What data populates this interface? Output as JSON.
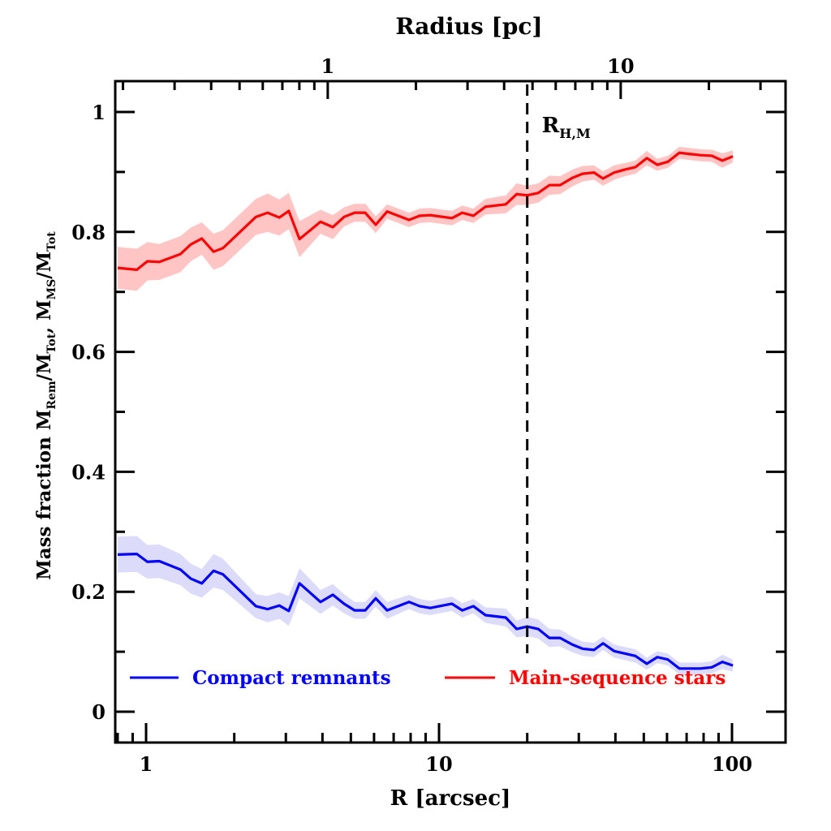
{
  "chart_data": {
    "type": "line",
    "xscale": "log",
    "xlabel": "R [arcsec]",
    "top_xlabel": "Radius [pc]",
    "ylabel": {
      "prefix": "Mass fraction",
      "num1": "M",
      "num1_sub": "Rem",
      "den1": "/M",
      "den1_sub": "Tot",
      "sep": ", ",
      "num2": "M",
      "num2_sub": "MS",
      "den2": "/M",
      "den2_sub": "Tot"
    },
    "xlim": [
      0.76,
      152
    ],
    "ylim": [
      -0.05,
      1.05
    ],
    "x_ticks": [
      {
        "value": 1,
        "label": "1"
      },
      {
        "value": 10,
        "label": "10"
      },
      {
        "value": 100,
        "label": "100"
      }
    ],
    "y_ticks": [
      {
        "value": 0,
        "label": "0"
      },
      {
        "value": 0.2,
        "label": "0.2"
      },
      {
        "value": 0.4,
        "label": "0.4"
      },
      {
        "value": 0.6,
        "label": "0.6"
      },
      {
        "value": 0.8,
        "label": "0.8"
      },
      {
        "value": 1,
        "label": "1"
      }
    ],
    "top_ticks_pc": [
      {
        "value": 1,
        "label": "1"
      },
      {
        "value": 10,
        "label": "10"
      }
    ],
    "arcsec_per_pc": 4.17,
    "vline": {
      "x": 20,
      "label": "R",
      "label_sub": "H,M"
    },
    "x": [
      0.8,
      0.93,
      1.01,
      1.11,
      1.31,
      1.42,
      1.55,
      1.7,
      1.83,
      2.37,
      2.6,
      2.85,
      3.07,
      3.34,
      3.94,
      4.34,
      4.74,
      5.15,
      5.6,
      6.08,
      6.65,
      7.9,
      8.59,
      9.33,
      11.07,
      12.0,
      13.1,
      14.4,
      16.9,
      18.4,
      20.0,
      21.8,
      23.8,
      25.9,
      28.5,
      30.9,
      33.8,
      36.3,
      39.6,
      43.1,
      46.8,
      51.2,
      55.6,
      60.4,
      66.1,
      71.8,
      78.0,
      85.3,
      92.7,
      100.7
    ],
    "series": [
      {
        "name": "Compact remnants",
        "color": "#0000ff",
        "band_color": "#dcdcfa",
        "values": [
          0.262,
          0.263,
          0.25,
          0.251,
          0.237,
          0.222,
          0.214,
          0.235,
          0.229,
          0.176,
          0.171,
          0.177,
          0.168,
          0.214,
          0.183,
          0.195,
          0.18,
          0.169,
          0.169,
          0.189,
          0.169,
          0.183,
          0.176,
          0.173,
          0.18,
          0.169,
          0.176,
          0.161,
          0.157,
          0.138,
          0.142,
          0.138,
          0.123,
          0.123,
          0.112,
          0.105,
          0.103,
          0.114,
          0.101,
          0.097,
          0.093,
          0.08,
          0.091,
          0.087,
          0.072,
          0.072,
          0.072,
          0.074,
          0.083,
          0.077
        ],
        "err": [
          0.03,
          0.03,
          0.028,
          0.028,
          0.026,
          0.025,
          0.024,
          0.028,
          0.026,
          0.02,
          0.022,
          0.022,
          0.025,
          0.025,
          0.02,
          0.018,
          0.016,
          0.014,
          0.014,
          0.014,
          0.014,
          0.012,
          0.012,
          0.012,
          0.012,
          0.012,
          0.012,
          0.013,
          0.015,
          0.014,
          0.016,
          0.016,
          0.015,
          0.014,
          0.013,
          0.012,
          0.012,
          0.011,
          0.011,
          0.011,
          0.011,
          0.01,
          0.01,
          0.01,
          0.01,
          0.01,
          0.01,
          0.01,
          0.012,
          0.01
        ]
      },
      {
        "name": "Main-sequence stars",
        "color": "#ff0000",
        "band_color": "#ffc4c4",
        "values": [
          0.74,
          0.737,
          0.751,
          0.75,
          0.763,
          0.779,
          0.789,
          0.767,
          0.773,
          0.825,
          0.832,
          0.824,
          0.835,
          0.788,
          0.817,
          0.808,
          0.825,
          0.832,
          0.832,
          0.812,
          0.834,
          0.82,
          0.827,
          0.828,
          0.823,
          0.832,
          0.827,
          0.842,
          0.846,
          0.863,
          0.861,
          0.865,
          0.878,
          0.878,
          0.89,
          0.897,
          0.899,
          0.889,
          0.899,
          0.904,
          0.908,
          0.923,
          0.912,
          0.917,
          0.932,
          0.93,
          0.928,
          0.927,
          0.919,
          0.926
        ],
        "err": [
          0.035,
          0.035,
          0.032,
          0.03,
          0.03,
          0.028,
          0.027,
          0.03,
          0.03,
          0.03,
          0.032,
          0.03,
          0.03,
          0.03,
          0.02,
          0.02,
          0.016,
          0.015,
          0.015,
          0.014,
          0.012,
          0.012,
          0.012,
          0.012,
          0.012,
          0.012,
          0.012,
          0.013,
          0.015,
          0.018,
          0.016,
          0.016,
          0.016,
          0.015,
          0.014,
          0.013,
          0.012,
          0.012,
          0.012,
          0.011,
          0.011,
          0.012,
          0.01,
          0.01,
          0.01,
          0.01,
          0.01,
          0.01,
          0.012,
          0.01
        ]
      }
    ],
    "legend": {
      "placement": "bottom"
    }
  }
}
